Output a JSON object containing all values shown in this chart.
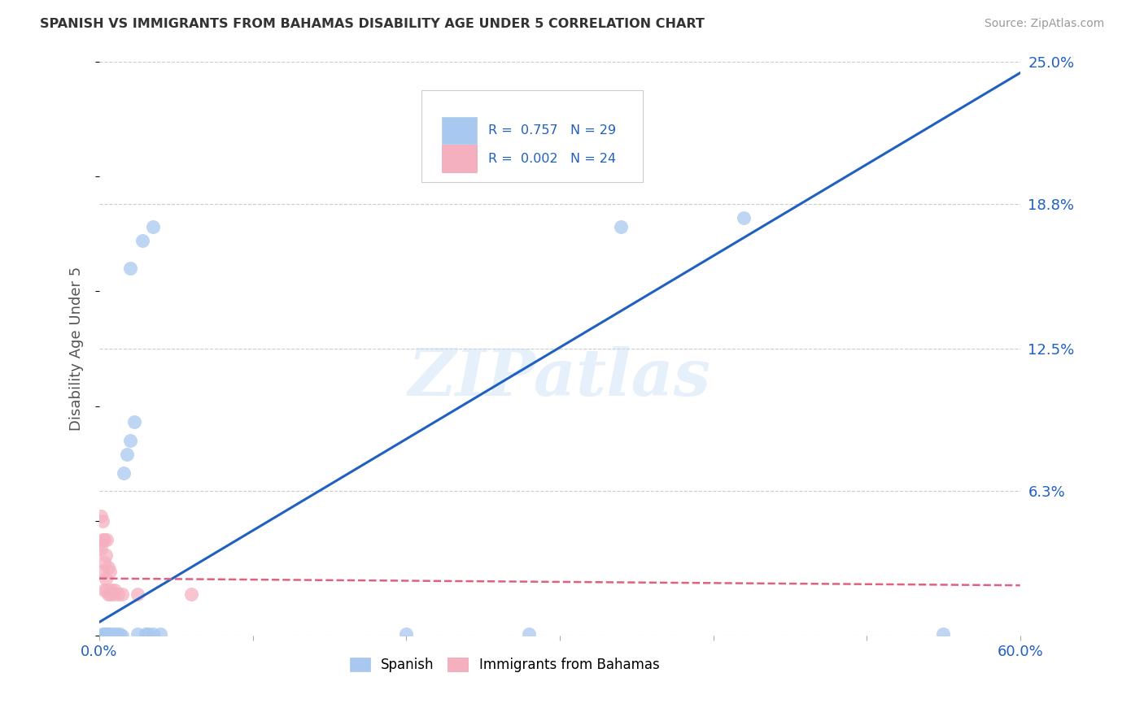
{
  "title": "SPANISH VS IMMIGRANTS FROM BAHAMAS DISABILITY AGE UNDER 5 CORRELATION CHART",
  "source": "Source: ZipAtlas.com",
  "ylabel_label": "Disability Age Under 5",
  "watermark": "ZIPatlas",
  "xlim": [
    0.0,
    0.6
  ],
  "ylim": [
    0.0,
    0.25
  ],
  "xtick_pos": [
    0.0,
    0.1,
    0.2,
    0.3,
    0.4,
    0.5,
    0.6
  ],
  "xtick_labels": [
    "0.0%",
    "",
    "",
    "",
    "",
    "",
    "60.0%"
  ],
  "ytick_positions_right": [
    0.25,
    0.188,
    0.125,
    0.063,
    0.0
  ],
  "ytick_labels_right": [
    "25.0%",
    "18.8%",
    "12.5%",
    "6.3%",
    ""
  ],
  "spanish_R": 0.757,
  "spanish_N": 29,
  "bahamas_R": 0.002,
  "bahamas_N": 24,
  "spanish_color": "#a8c8f0",
  "spanish_line_color": "#2060c0",
  "bahamas_color": "#f5b0c0",
  "bahamas_line_color": "#e06080",
  "grid_color": "#cccccc",
  "background_color": "#ffffff",
  "spanish_points": [
    [
      0.002,
      0.001
    ],
    [
      0.003,
      0.001
    ],
    [
      0.004,
      0.001
    ],
    [
      0.005,
      0.001
    ],
    [
      0.006,
      0.001
    ],
    [
      0.007,
      0.001
    ],
    [
      0.008,
      0.0
    ],
    [
      0.009,
      0.001
    ],
    [
      0.01,
      0.0
    ],
    [
      0.011,
      0.001
    ],
    [
      0.013,
      0.001
    ],
    [
      0.015,
      0.0
    ],
    [
      0.016,
      0.071
    ],
    [
      0.018,
      0.079
    ],
    [
      0.02,
      0.085
    ],
    [
      0.023,
      0.093
    ],
    [
      0.025,
      0.001
    ],
    [
      0.03,
      0.001
    ],
    [
      0.032,
      0.001
    ],
    [
      0.035,
      0.001
    ],
    [
      0.04,
      0.001
    ],
    [
      0.2,
      0.001
    ],
    [
      0.28,
      0.001
    ],
    [
      0.02,
      0.16
    ],
    [
      0.028,
      0.172
    ],
    [
      0.035,
      0.178
    ],
    [
      0.34,
      0.178
    ],
    [
      0.42,
      0.182
    ],
    [
      0.55,
      0.001
    ]
  ],
  "bahamas_points": [
    [
      0.0,
      0.04
    ],
    [
      0.001,
      0.052
    ],
    [
      0.001,
      0.038
    ],
    [
      0.002,
      0.042
    ],
    [
      0.002,
      0.05
    ],
    [
      0.002,
      0.028
    ],
    [
      0.003,
      0.042
    ],
    [
      0.003,
      0.032
    ],
    [
      0.003,
      0.02
    ],
    [
      0.004,
      0.025
    ],
    [
      0.004,
      0.035
    ],
    [
      0.005,
      0.02
    ],
    [
      0.005,
      0.042
    ],
    [
      0.006,
      0.018
    ],
    [
      0.006,
      0.03
    ],
    [
      0.007,
      0.018
    ],
    [
      0.007,
      0.028
    ],
    [
      0.008,
      0.02
    ],
    [
      0.009,
      0.018
    ],
    [
      0.01,
      0.02
    ],
    [
      0.012,
      0.018
    ],
    [
      0.015,
      0.018
    ],
    [
      0.025,
      0.018
    ],
    [
      0.06,
      0.018
    ]
  ],
  "spanish_line": [
    0.0,
    0.006,
    0.6,
    0.245
  ],
  "bahamas_line": [
    0.0,
    0.025,
    0.6,
    0.022
  ]
}
